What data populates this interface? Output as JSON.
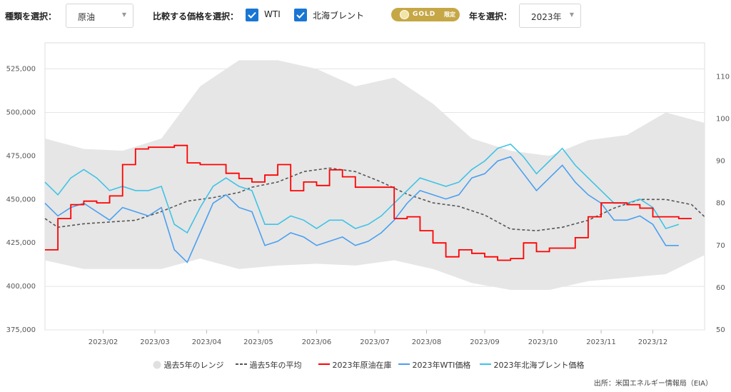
{
  "toolbar": {
    "type_label": "種類を選択：",
    "type_value": "原油",
    "compare_label": "比較する価格を選択：",
    "wti_label": "WTI",
    "brent_label": "北海ブレント",
    "gold_badge": "GOLD",
    "gold_limited": "限定",
    "year_label": "年を選択：",
    "year_value": "2023年",
    "wti_checked": true,
    "brent_checked": true
  },
  "legend": {
    "range": "過去5年のレンジ",
    "avg": "過去5年の平均",
    "stock": "2023年原油在庫",
    "wti": "2023年WTI価格",
    "brent": "2023年北海ブレント価格"
  },
  "source": "出所：米国エネルギー情報局（EIA）",
  "colors": {
    "range": "#e6e6e6",
    "avg": "#555555",
    "stock": "#ff0000",
    "wti": "#4a9ff0",
    "brent": "#3ec3e6",
    "checkbox": "#1976d2",
    "gold": "#c6a746"
  },
  "chart_data": {
    "type": "line",
    "x_ticks": [
      "2023/02",
      "2023/03",
      "2023/04",
      "2023/05",
      "2023/06",
      "2023/07",
      "2023/08",
      "2023/09",
      "2023/10",
      "2023/11",
      "2023/12"
    ],
    "y_left": {
      "ticks": [
        375000,
        400000,
        425000,
        450000,
        475000,
        500000,
        525000
      ],
      "labels": [
        "375,000",
        "400,000",
        "425,000",
        "450,000",
        "475,000",
        "500,000",
        "525,000"
      ]
    },
    "y_right": {
      "ticks": [
        50,
        60,
        70,
        80,
        90,
        100,
        110
      ],
      "labels": [
        "50",
        "60",
        "70",
        "80",
        "90",
        "100",
        "110"
      ]
    },
    "series": [
      {
        "name": "過去5年のレンジ",
        "type": "area",
        "axis": "left",
        "week": [
          1,
          4,
          7,
          10,
          13,
          16,
          19,
          22,
          25,
          28,
          31,
          34,
          37,
          40,
          43,
          46,
          49,
          52
        ],
        "low": [
          415000,
          410000,
          410000,
          410000,
          416000,
          410000,
          412000,
          413000,
          412000,
          415000,
          410000,
          402000,
          398000,
          398000,
          403000,
          405000,
          407000,
          418000
        ],
        "high": [
          485000,
          479000,
          478000,
          485000,
          515000,
          530000,
          530000,
          525000,
          515000,
          520000,
          505000,
          485000,
          478000,
          475000,
          484000,
          487000,
          500000,
          494000
        ]
      },
      {
        "name": "過去5年の平均",
        "type": "line",
        "style": "dashed",
        "axis": "left",
        "week": [
          1,
          2,
          4,
          6,
          8,
          10,
          12,
          14,
          16,
          17,
          19,
          21,
          23,
          25,
          27,
          29,
          31,
          33,
          35,
          37,
          39,
          41,
          43,
          45,
          47,
          49,
          51,
          52
        ],
        "values": [
          439000,
          434000,
          436000,
          437000,
          438000,
          443000,
          449000,
          451000,
          454000,
          457000,
          460000,
          466000,
          468000,
          466000,
          460000,
          453000,
          448000,
          446000,
          441000,
          433000,
          432000,
          434000,
          438000,
          445000,
          450000,
          450000,
          447000,
          440000
        ]
      },
      {
        "name": "2023年原油在庫",
        "type": "line",
        "style": "step",
        "axis": "left",
        "week": [
          1,
          2,
          3,
          4,
          5,
          6,
          7,
          8,
          9,
          10,
          11,
          12,
          13,
          14,
          15,
          16,
          17,
          18,
          19,
          20,
          21,
          22,
          23,
          24,
          25,
          26,
          27,
          28,
          29,
          30,
          31,
          32,
          33,
          34,
          35,
          36,
          37,
          38,
          39,
          40,
          41,
          42,
          43,
          44,
          45,
          46,
          47,
          48,
          49,
          50
        ],
        "values": [
          421000,
          439000,
          447000,
          449000,
          448000,
          452000,
          470000,
          479000,
          480000,
          480000,
          481000,
          471000,
          470000,
          470000,
          465000,
          462000,
          460000,
          464000,
          470000,
          455000,
          460000,
          458000,
          467000,
          463000,
          457000,
          457000,
          457000,
          439000,
          440000,
          432000,
          425000,
          417000,
          421000,
          419000,
          417000,
          415000,
          416000,
          425000,
          420000,
          422000,
          422000,
          428000,
          440000,
          448000,
          448000,
          447000,
          445000,
          440000,
          440000,
          439000
        ]
      },
      {
        "name": "2023年WTI価格",
        "type": "line",
        "axis": "right",
        "week": [
          1,
          2,
          3,
          4,
          5,
          6,
          7,
          8,
          9,
          10,
          11,
          12,
          13,
          14,
          15,
          16,
          17,
          18,
          19,
          20,
          21,
          22,
          23,
          24,
          25,
          26,
          27,
          28,
          29,
          30,
          31,
          32,
          33,
          34,
          35,
          36,
          37,
          38,
          39,
          40,
          41,
          42,
          43,
          44,
          45,
          46,
          47,
          48,
          49,
          50
        ],
        "values": [
          80,
          77,
          79,
          80,
          78,
          76,
          79,
          78,
          77,
          79,
          69,
          66,
          73,
          80,
          82,
          79,
          78,
          70,
          71,
          73,
          72,
          70,
          71,
          72,
          70,
          71,
          73,
          76,
          80,
          83,
          82,
          81,
          82,
          86,
          87,
          90,
          91,
          87,
          83,
          86,
          89,
          85,
          82,
          80,
          76,
          76,
          77,
          75,
          70,
          70
        ]
      },
      {
        "name": "2023年北海ブレント価格",
        "type": "line",
        "axis": "right",
        "week": [
          1,
          2,
          3,
          4,
          5,
          6,
          7,
          8,
          9,
          10,
          11,
          12,
          13,
          14,
          15,
          16,
          17,
          18,
          19,
          20,
          21,
          22,
          23,
          24,
          25,
          26,
          27,
          28,
          29,
          30,
          31,
          32,
          33,
          34,
          35,
          36,
          37,
          38,
          39,
          40,
          41,
          42,
          43,
          44,
          45,
          46,
          47,
          48,
          49,
          50
        ],
        "values": [
          85,
          82,
          86,
          88,
          86,
          83,
          84,
          83,
          83,
          84,
          75,
          73,
          79,
          84,
          86,
          84,
          83,
          75,
          75,
          77,
          76,
          74,
          76,
          76,
          74,
          75,
          77,
          80,
          83,
          86,
          85,
          84,
          85,
          88,
          90,
          93,
          94,
          91,
          87,
          90,
          93,
          89,
          86,
          83,
          80,
          80,
          81,
          79,
          74,
          75
        ]
      }
    ]
  }
}
